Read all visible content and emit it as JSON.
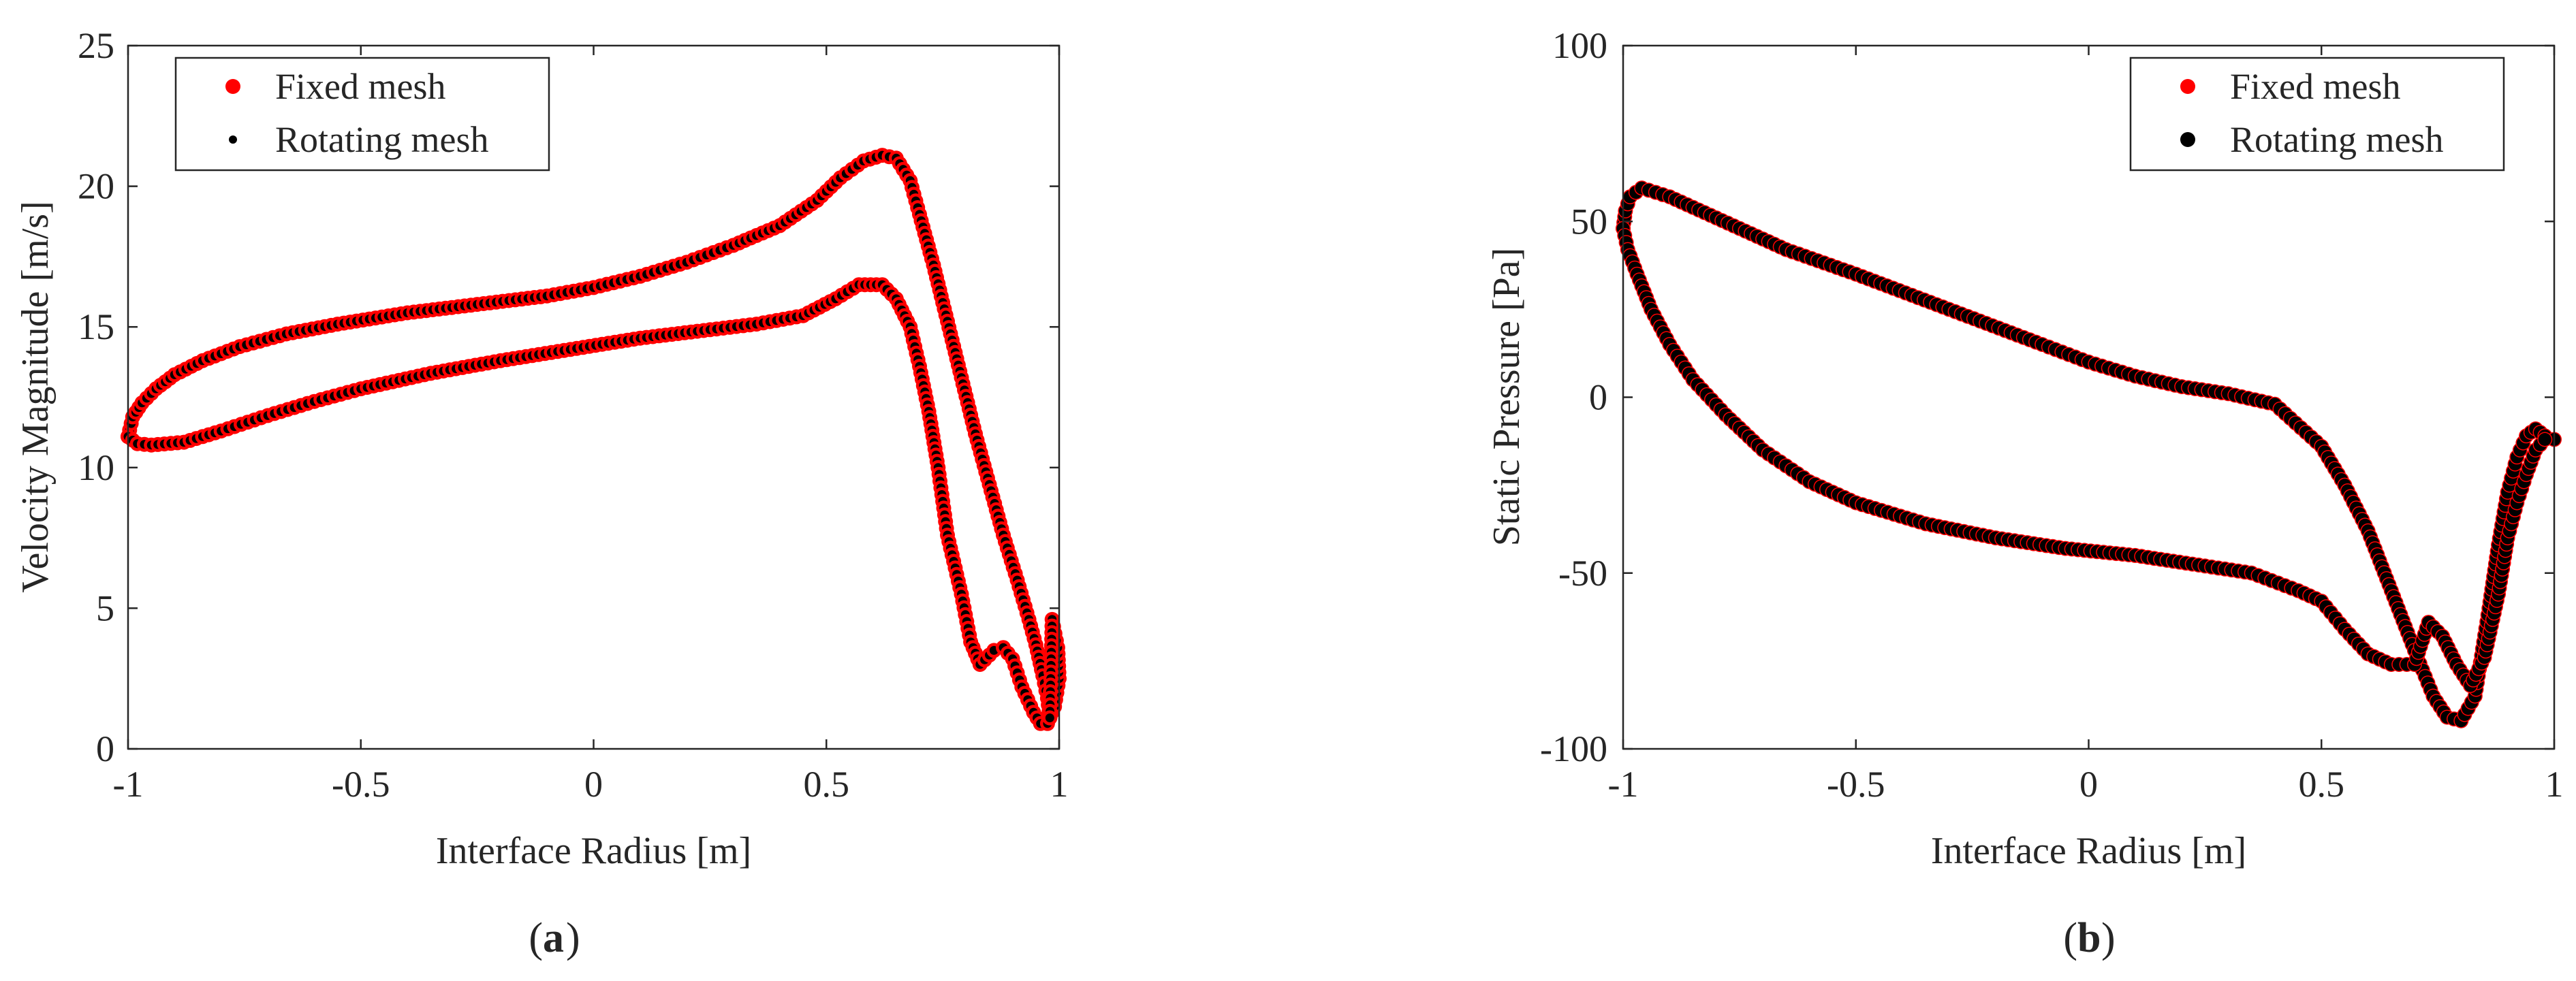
{
  "chart_data": [
    {
      "type": "scatter",
      "panel_label": "(a)",
      "panel_letter": "a",
      "xlabel": "Interface Radius [m]",
      "ylabel": "Velocity Magnitude [m/s]",
      "xlim": [
        -1,
        1
      ],
      "ylim": [
        0,
        25
      ],
      "xticks": [
        -1,
        -0.5,
        0,
        0.5,
        1
      ],
      "xtick_labels": [
        "-1",
        "-0.5",
        "0",
        "0.5",
        "1"
      ],
      "yticks": [
        0,
        5,
        10,
        15,
        20,
        25
      ],
      "ytick_labels": [
        "0",
        "5",
        "10",
        "15",
        "20",
        "25"
      ],
      "legend_position": "top-left",
      "series": [
        {
          "name": "Fixed mesh",
          "marker": "filled-circle",
          "color": "#ff0000",
          "paths": [
            [
              [
                -1.0,
                11.1
              ],
              [
                -0.99,
                11.8
              ],
              [
                -0.97,
                12.3
              ],
              [
                -0.94,
                12.8
              ],
              [
                -0.9,
                13.3
              ],
              [
                -0.84,
                13.8
              ],
              [
                -0.76,
                14.3
              ],
              [
                -0.66,
                14.75
              ],
              [
                -0.55,
                15.1
              ],
              [
                -0.4,
                15.5
              ],
              [
                -0.25,
                15.8
              ],
              [
                -0.1,
                16.1
              ],
              [
                0.0,
                16.4
              ],
              [
                0.1,
                16.8
              ],
              [
                0.2,
                17.3
              ],
              [
                0.3,
                17.9
              ],
              [
                0.4,
                18.6
              ],
              [
                0.48,
                19.5
              ],
              [
                0.53,
                20.3
              ],
              [
                0.58,
                20.9
              ],
              [
                0.62,
                21.1
              ],
              [
                0.65,
                21.0
              ],
              [
                0.68,
                20.2
              ],
              [
                0.7,
                19.0
              ],
              [
                0.73,
                17.2
              ],
              [
                0.76,
                15.2
              ],
              [
                0.79,
                13.2
              ],
              [
                0.82,
                11.2
              ],
              [
                0.85,
                9.4
              ],
              [
                0.88,
                7.6
              ],
              [
                0.91,
                6.0
              ],
              [
                0.935,
                4.6
              ],
              [
                0.95,
                3.7
              ],
              [
                0.965,
                2.6
              ],
              [
                0.975,
                1.8
              ],
              [
                0.98,
                1.1
              ]
            ],
            [
              [
                -1.0,
                11.1
              ],
              [
                -0.98,
                10.85
              ],
              [
                -0.95,
                10.8
              ],
              [
                -0.88,
                10.9
              ],
              [
                -0.8,
                11.3
              ],
              [
                -0.7,
                11.85
              ],
              [
                -0.6,
                12.35
              ],
              [
                -0.5,
                12.8
              ],
              [
                -0.35,
                13.35
              ],
              [
                -0.2,
                13.8
              ],
              [
                -0.05,
                14.2
              ],
              [
                0.1,
                14.6
              ],
              [
                0.25,
                14.9
              ],
              [
                0.35,
                15.1
              ],
              [
                0.45,
                15.4
              ],
              [
                0.52,
                16.0
              ],
              [
                0.57,
                16.5
              ],
              [
                0.62,
                16.5
              ],
              [
                0.65,
                16.0
              ],
              [
                0.68,
                15.0
              ],
              [
                0.7,
                13.6
              ],
              [
                0.72,
                12.0
              ],
              [
                0.74,
                10.0
              ],
              [
                0.76,
                7.6
              ],
              [
                0.79,
                5.5
              ],
              [
                0.81,
                3.8
              ],
              [
                0.83,
                3.0
              ],
              [
                0.86,
                3.5
              ],
              [
                0.88,
                3.6
              ],
              [
                0.9,
                3.2
              ],
              [
                0.92,
                2.2
              ],
              [
                0.945,
                1.3
              ],
              [
                0.96,
                0.9
              ],
              [
                0.975,
                0.9
              ],
              [
                0.99,
                1.5
              ],
              [
                1.0,
                2.5
              ],
              [
                0.997,
                3.6
              ],
              [
                0.985,
                4.6
              ],
              [
                0.98,
                1.1
              ]
            ]
          ]
        },
        {
          "name": "Rotating mesh",
          "marker": "filled-circle",
          "color": "#000000",
          "paths": "same as Fixed mesh"
        }
      ]
    },
    {
      "type": "scatter",
      "panel_label": "(b)",
      "panel_letter": "b",
      "xlabel": "Interface Radius [m]",
      "ylabel": "Static Pressure [Pa]",
      "xlim": [
        -1,
        1
      ],
      "ylim": [
        -100,
        100
      ],
      "xticks": [
        -1,
        -0.5,
        0,
        0.5,
        1
      ],
      "xtick_labels": [
        "-1",
        "-0.5",
        "0",
        "0.5",
        "1"
      ],
      "yticks": [
        -100,
        -50,
        0,
        50,
        100
      ],
      "ytick_labels": [
        "-100",
        "-50",
        "0",
        "50",
        "100"
      ],
      "legend_position": "top-right",
      "series": [
        {
          "name": "Fixed mesh",
          "marker": "filled-circle",
          "color": "#ff0000",
          "paths": [
            [
              [
                -1.0,
                48
              ],
              [
                -0.995,
                53
              ],
              [
                -0.985,
                57
              ],
              [
                -0.96,
                59.5
              ],
              [
                -0.9,
                57
              ],
              [
                -0.8,
                51
              ],
              [
                -0.65,
                42
              ],
              [
                -0.5,
                35
              ],
              [
                -0.3,
                25
              ],
              [
                -0.1,
                15
              ],
              [
                0.0,
                10
              ],
              [
                0.1,
                6
              ],
              [
                0.2,
                3
              ],
              [
                0.3,
                1
              ],
              [
                0.4,
                -2
              ],
              [
                0.5,
                -14
              ],
              [
                0.55,
                -25
              ],
              [
                0.6,
                -38
              ],
              [
                0.65,
                -55
              ],
              [
                0.7,
                -72
              ],
              [
                0.74,
                -85
              ],
              [
                0.77,
                -91
              ],
              [
                0.8,
                -92
              ],
              [
                0.83,
                -85
              ],
              [
                0.86,
                -60
              ],
              [
                0.88,
                -42
              ],
              [
                0.9,
                -27
              ],
              [
                0.92,
                -17
              ],
              [
                0.94,
                -11
              ],
              [
                0.96,
                -9
              ],
              [
                0.98,
                -11
              ],
              [
                1.0,
                -12
              ]
            ],
            [
              [
                -1.0,
                48
              ],
              [
                -0.99,
                42
              ],
              [
                -0.97,
                35
              ],
              [
                -0.94,
                25
              ],
              [
                -0.9,
                15
              ],
              [
                -0.85,
                5
              ],
              [
                -0.78,
                -5
              ],
              [
                -0.7,
                -15
              ],
              [
                -0.6,
                -24
              ],
              [
                -0.5,
                -30
              ],
              [
                -0.35,
                -36
              ],
              [
                -0.2,
                -40
              ],
              [
                -0.05,
                -43
              ],
              [
                0.1,
                -45
              ],
              [
                0.25,
                -48
              ],
              [
                0.35,
                -50
              ],
              [
                0.45,
                -55
              ],
              [
                0.5,
                -58
              ],
              [
                0.55,
                -66
              ],
              [
                0.6,
                -73
              ],
              [
                0.65,
                -76
              ],
              [
                0.7,
                -76
              ],
              [
                0.73,
                -64
              ],
              [
                0.76,
                -68
              ],
              [
                0.79,
                -76
              ],
              [
                0.82,
                -82
              ],
              [
                0.85,
                -74
              ],
              [
                0.88,
                -56
              ],
              [
                0.9,
                -40
              ],
              [
                0.92,
                -30
              ],
              [
                0.94,
                -22
              ],
              [
                0.96,
                -15
              ],
              [
                0.98,
                -12
              ]
            ]
          ]
        },
        {
          "name": "Rotating mesh",
          "marker": "filled-circle",
          "color": "#000000",
          "paths": "same as Fixed mesh"
        }
      ]
    }
  ]
}
